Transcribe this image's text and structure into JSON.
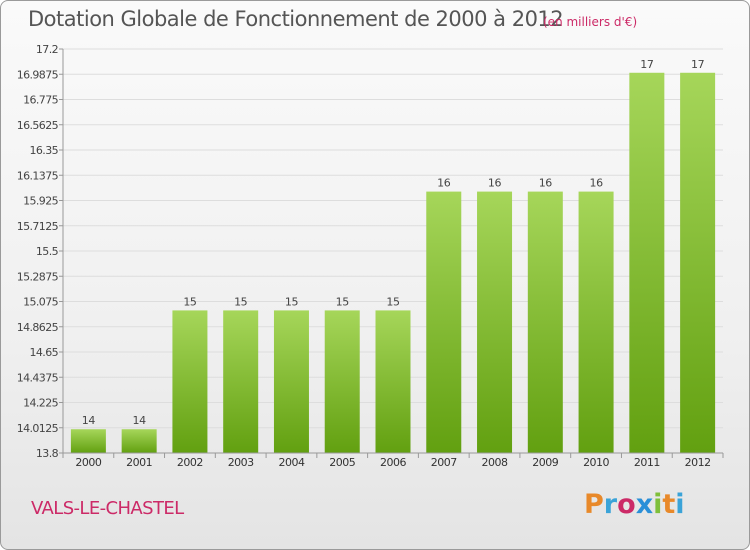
{
  "header": {
    "title": "Dotation Globale de Fonctionnement de 2000 à 2012",
    "subtitle": "(en milliers d'€)"
  },
  "footer": {
    "commune": "VALS-LE-CHASTEL",
    "logo_text": "Proxiti",
    "logo_colors": [
      "#e8892a",
      "#3aa3d8",
      "#cc2a67",
      "#2a8fd8",
      "#7fbf3a",
      "#e8892a",
      "#3aa3d8"
    ]
  },
  "colors": {
    "bar_light": "#a6d65a",
    "bar_dark": "#62a010",
    "grid": "#dddddd",
    "axis": "#999999"
  },
  "chart_data": {
    "type": "bar",
    "title": "Dotation Globale de Fonctionnement de 2000 à 2012",
    "subtitle": "(en milliers d'€)",
    "xlabel": "",
    "ylabel": "",
    "categories": [
      "2000",
      "2001",
      "2002",
      "2003",
      "2004",
      "2005",
      "2006",
      "2007",
      "2008",
      "2009",
      "2010",
      "2011",
      "2012"
    ],
    "values": [
      14,
      14,
      15,
      15,
      15,
      15,
      15,
      16,
      16,
      16,
      16,
      17,
      17
    ],
    "data_labels": [
      "14",
      "14",
      "15",
      "15",
      "15",
      "15",
      "15",
      "16",
      "16",
      "16",
      "16",
      "17",
      "17"
    ],
    "ylim": [
      13.8,
      17.2
    ],
    "yticks": [
      13.8,
      14.0125,
      14.225,
      14.4375,
      14.65,
      14.8625,
      15.075,
      15.2875,
      15.5,
      15.7125,
      15.925,
      16.1375,
      16.35,
      16.5625,
      16.775,
      16.9875,
      17.2
    ],
    "ytick_labels": [
      "13.8",
      "14.0125",
      "14.225",
      "14.4375",
      "14.65",
      "14.8625",
      "15.075",
      "15.2875",
      "15.5",
      "15.7125",
      "15.925",
      "16.1375",
      "16.35",
      "16.5625",
      "16.775",
      "16.9875",
      "17.2"
    ],
    "grid": true,
    "legend": "none"
  }
}
